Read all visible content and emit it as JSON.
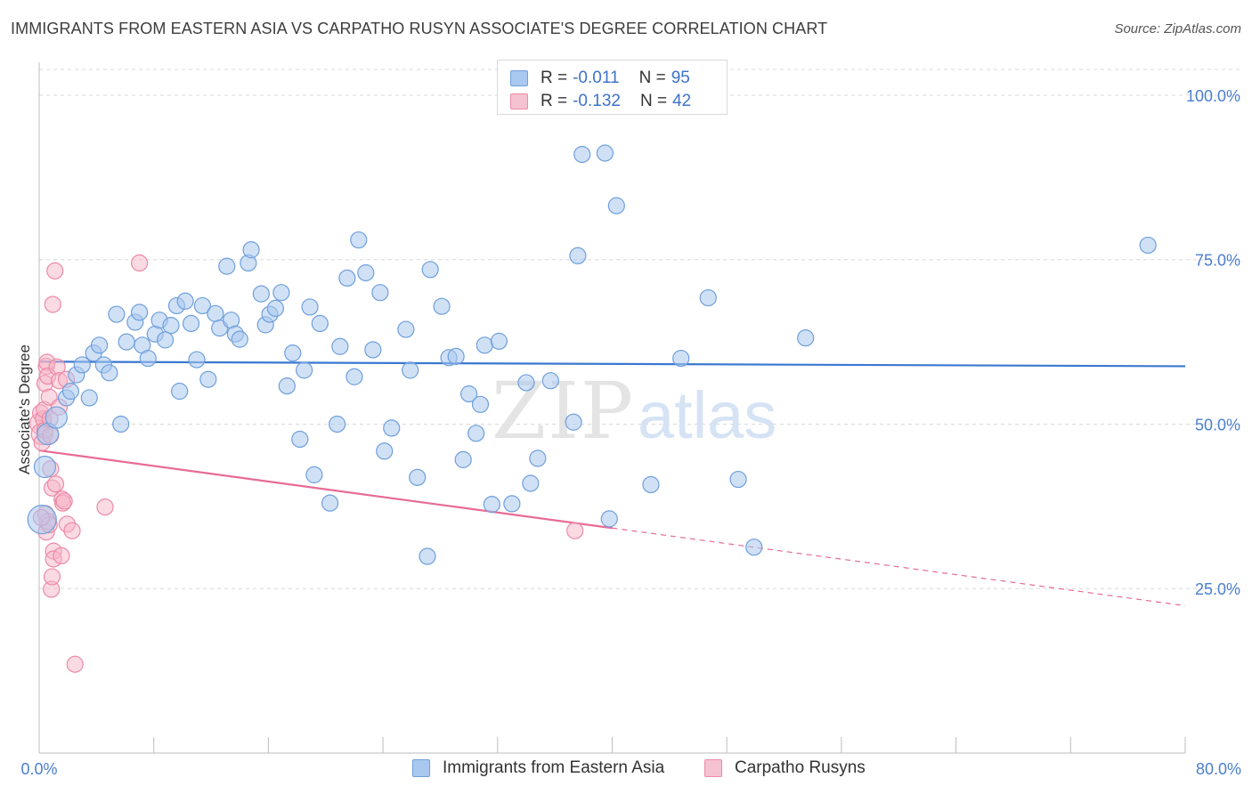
{
  "header": {
    "title": "IMMIGRANTS FROM EASTERN ASIA VS CARPATHO RUSYN ASSOCIATE'S DEGREE CORRELATION CHART",
    "source": "Source: ZipAtlas.com"
  },
  "legend": {
    "series1": {
      "r_label": "R = ",
      "r_value": "-0.011",
      "n_label": "N = ",
      "n_value": "95"
    },
    "series2": {
      "r_label": "R = ",
      "r_value": "-0.132",
      "n_label": "N = ",
      "n_value": "42"
    }
  },
  "watermark": {
    "part1": "ZIP",
    "part2": "atlas"
  },
  "colors": {
    "blue_fill": "#a9c8ef",
    "blue_stroke": "#6f9fdc",
    "blue_line": "#3a78d0",
    "pink_fill": "#f5b6c8",
    "pink_stroke": "#ec8aa8",
    "pink_line": "#e76b95",
    "tick_label": "#4a7fd1",
    "grid": "#d8d8d8"
  },
  "chart_data": {
    "type": "scatter",
    "title": "IMMIGRANTS FROM EASTERN ASIA VS CARPATHO RUSYN ASSOCIATE'S DEGREE CORRELATION CHART",
    "xlabel": "",
    "ylabel": "Associate's Degree",
    "xlim": [
      0,
      80
    ],
    "ylim": [
      0,
      105
    ],
    "x_tick_labels": [
      "0.0%",
      "80.0%"
    ],
    "y_ticks": [
      25,
      50,
      75,
      100
    ],
    "y_tick_labels": [
      "25.0%",
      "50.0%",
      "75.0%",
      "100.0%"
    ],
    "grid": true,
    "legend_position": "top-center",
    "series": [
      {
        "name": "Immigrants from Eastern Asia",
        "color": "#a9c8ef",
        "trend": {
          "x": [
            0,
            80
          ],
          "y": [
            59.5,
            58.8
          ],
          "style": "solid"
        },
        "points": [
          [
            0.2,
            35.5,
            3
          ],
          [
            0.4,
            43.5,
            2
          ],
          [
            0.6,
            48.5,
            2
          ],
          [
            1.2,
            51,
            2
          ],
          [
            1.9,
            54,
            1
          ],
          [
            2.2,
            55,
            1
          ],
          [
            2.6,
            57.5,
            1
          ],
          [
            3.0,
            59,
            1
          ],
          [
            3.5,
            54,
            1
          ],
          [
            3.8,
            60.8,
            1
          ],
          [
            4.2,
            62,
            1
          ],
          [
            4.5,
            59,
            1
          ],
          [
            4.9,
            57.8,
            1
          ],
          [
            5.4,
            66.7,
            1
          ],
          [
            5.7,
            50,
            1
          ],
          [
            6.1,
            62.5,
            1
          ],
          [
            6.7,
            65.5,
            1
          ],
          [
            7.0,
            67,
            1
          ],
          [
            7.2,
            62,
            1
          ],
          [
            7.6,
            60,
            1
          ],
          [
            8.1,
            63.7,
            1
          ],
          [
            8.4,
            65.8,
            1
          ],
          [
            8.8,
            62.8,
            1
          ],
          [
            9.2,
            65,
            1
          ],
          [
            9.6,
            68,
            1
          ],
          [
            9.8,
            55,
            1
          ],
          [
            10.2,
            68.7,
            1
          ],
          [
            10.6,
            65.3,
            1
          ],
          [
            11.0,
            59.8,
            1
          ],
          [
            11.4,
            68,
            1
          ],
          [
            11.8,
            56.8,
            1
          ],
          [
            12.3,
            66.8,
            1
          ],
          [
            12.6,
            64.6,
            1
          ],
          [
            13.1,
            74,
            1
          ],
          [
            13.4,
            65.8,
            1
          ],
          [
            13.7,
            63.7,
            1
          ],
          [
            14.0,
            62.9,
            1
          ],
          [
            14.6,
            74.5,
            1
          ],
          [
            14.8,
            76.5,
            1
          ],
          [
            15.5,
            69.8,
            1
          ],
          [
            15.8,
            65.1,
            1
          ],
          [
            16.1,
            66.7,
            1
          ],
          [
            16.5,
            67.6,
            1
          ],
          [
            16.9,
            70,
            1
          ],
          [
            17.3,
            55.8,
            1
          ],
          [
            17.7,
            60.8,
            1
          ],
          [
            18.2,
            47.7,
            1
          ],
          [
            18.5,
            58.2,
            1
          ],
          [
            18.9,
            67.8,
            1
          ],
          [
            19.2,
            42.3,
            1
          ],
          [
            19.6,
            65.3,
            1
          ],
          [
            20.3,
            38,
            1
          ],
          [
            20.8,
            50,
            1
          ],
          [
            21.0,
            61.8,
            1
          ],
          [
            21.5,
            72.2,
            1
          ],
          [
            22.0,
            57.2,
            1
          ],
          [
            22.3,
            78,
            1
          ],
          [
            22.8,
            73,
            1
          ],
          [
            23.3,
            61.3,
            1
          ],
          [
            23.8,
            70,
            1
          ],
          [
            24.1,
            45.9,
            1
          ],
          [
            24.6,
            49.4,
            1
          ],
          [
            25.6,
            64.4,
            1
          ],
          [
            25.9,
            58.2,
            1
          ],
          [
            26.4,
            41.9,
            1
          ],
          [
            27.1,
            29.9,
            1
          ],
          [
            27.3,
            73.5,
            1
          ],
          [
            28.1,
            67.9,
            1
          ],
          [
            28.6,
            60.1,
            1
          ],
          [
            29.1,
            60.3,
            1
          ],
          [
            29.6,
            44.6,
            1
          ],
          [
            30.0,
            54.6,
            1
          ],
          [
            30.5,
            48.6,
            1
          ],
          [
            30.8,
            53,
            1
          ],
          [
            31.1,
            62,
            1
          ],
          [
            31.6,
            37.8,
            1
          ],
          [
            32.1,
            62.6,
            1
          ],
          [
            33.0,
            37.9,
            1
          ],
          [
            34.0,
            56.3,
            1
          ],
          [
            34.3,
            41,
            1
          ],
          [
            34.8,
            44.8,
            1
          ],
          [
            35.7,
            56.6,
            1
          ],
          [
            37.3,
            50.3,
            1
          ],
          [
            37.6,
            75.6,
            1
          ],
          [
            37.9,
            91,
            1
          ],
          [
            39.5,
            91.2,
            1
          ],
          [
            39.8,
            35.6,
            1
          ],
          [
            40.3,
            83.2,
            1
          ],
          [
            42.7,
            40.8,
            1
          ],
          [
            44.8,
            60,
            1
          ],
          [
            46.7,
            69.2,
            1
          ],
          [
            48.8,
            41.6,
            1
          ],
          [
            49.9,
            31.3,
            1
          ],
          [
            53.5,
            63.1,
            1
          ],
          [
            77.4,
            77.2,
            1
          ]
        ]
      },
      {
        "name": "Carpatho Rusyns",
        "color": "#f5b6c8",
        "trend": {
          "x": [
            0,
            40
          ],
          "y": [
            46,
            34.2
          ],
          "style": "solid",
          "dashed_extension_to": [
            80,
            22.4
          ]
        },
        "points": [
          [
            0.1,
            50.1,
            2
          ],
          [
            0.1,
            51.7,
            1
          ],
          [
            0.2,
            48.5,
            2
          ],
          [
            0.2,
            47.2,
            1
          ],
          [
            0.3,
            50.8,
            1
          ],
          [
            0.35,
            52.2,
            1
          ],
          [
            0.4,
            56.2,
            1
          ],
          [
            0.4,
            49.1,
            1
          ],
          [
            0.45,
            36.4,
            1
          ],
          [
            0.5,
            33.6,
            1
          ],
          [
            0.5,
            58.8,
            1
          ],
          [
            0.55,
            59.4,
            1
          ],
          [
            0.6,
            35.2,
            1
          ],
          [
            0.6,
            57.3,
            1
          ],
          [
            0.7,
            34.7,
            1
          ],
          [
            0.7,
            54.1,
            1
          ],
          [
            0.75,
            50.8,
            1
          ],
          [
            0.8,
            43.2,
            1
          ],
          [
            0.8,
            48.3,
            1
          ],
          [
            0.85,
            24.9,
            1
          ],
          [
            0.9,
            26.8,
            1
          ],
          [
            0.9,
            40.3,
            1
          ],
          [
            0.95,
            68.2,
            1
          ],
          [
            1.0,
            30.7,
            1
          ],
          [
            1.0,
            29.5,
            1
          ],
          [
            1.1,
            73.3,
            1
          ],
          [
            1.15,
            40.9,
            1
          ],
          [
            1.25,
            58.7,
            1
          ],
          [
            1.4,
            56.6,
            1
          ],
          [
            1.4,
            52.6,
            1
          ],
          [
            1.55,
            30,
            1
          ],
          [
            1.6,
            38.6,
            1
          ],
          [
            1.65,
            38,
            1
          ],
          [
            1.75,
            38.3,
            1
          ],
          [
            1.9,
            56.8,
            1
          ],
          [
            1.95,
            34.8,
            1
          ],
          [
            2.3,
            33.8,
            1
          ],
          [
            2.5,
            13.5,
            1
          ],
          [
            4.6,
            37.4,
            1
          ],
          [
            7.0,
            74.5,
            1
          ],
          [
            37.4,
            33.8,
            1
          ],
          [
            0.15,
            35.8,
            1
          ]
        ]
      }
    ]
  },
  "bottom_legend": {
    "item1": "Immigrants from Eastern Asia",
    "item2": "Carpatho Rusyns"
  }
}
